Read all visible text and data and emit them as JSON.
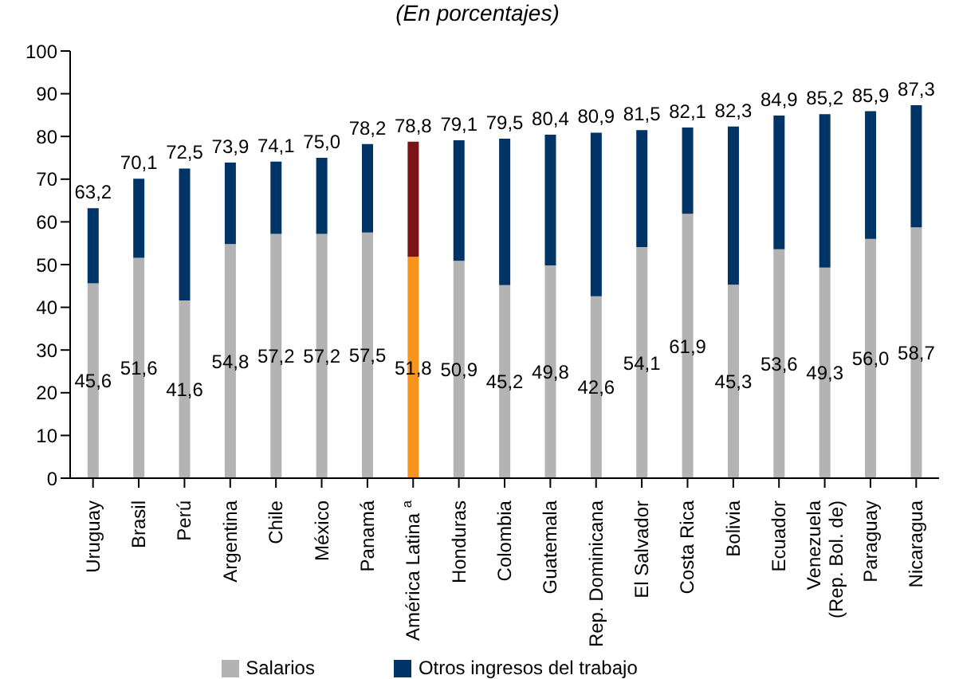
{
  "chart_data": {
    "type": "bar",
    "subtitle": "(En porcentajes)",
    "stacked": true,
    "categories": [
      "Uruguay",
      "Brasil",
      "Perú",
      "Argentina",
      "Chile",
      "México",
      "Panamá",
      "América Latina $^{a}$",
      "Honduras",
      "Colombia",
      "Guatemala",
      "Rep. Dominicana",
      "El Salvador",
      "Costa Rica",
      "Bolivia",
      "Ecuador",
      "Venezuela (Rep. Bol. de)",
      "Paraguay",
      "Nicaragua"
    ],
    "series": [
      {
        "name": "Salarios",
        "color": "#b3b3b3",
        "colors": [
          "#b3b3b3",
          "#b3b3b3",
          "#b3b3b3",
          "#b3b3b3",
          "#b3b3b3",
          "#b3b3b3",
          "#b3b3b3",
          "#f7941d",
          "#b3b3b3",
          "#b3b3b3",
          "#b3b3b3",
          "#b3b3b3",
          "#b3b3b3",
          "#b3b3b3",
          "#b3b3b3",
          "#b3b3b3",
          "#b3b3b3",
          "#b3b3b3",
          "#b3b3b3"
        ],
        "values": [
          45.6,
          51.6,
          41.6,
          54.8,
          57.2,
          57.2,
          57.5,
          51.8,
          50.9,
          45.2,
          49.8,
          42.6,
          54.1,
          61.9,
          45.3,
          53.6,
          49.3,
          56.0,
          58.7
        ],
        "value_labels": [
          "45,6",
          "51,6",
          "41,6",
          "54,8",
          "57,2",
          "57,2",
          "57,5",
          "51,8",
          "50,9",
          "45,2",
          "49,8",
          "42,6",
          "54,1",
          "61,9",
          "45,3",
          "53,6",
          "49,3",
          "56,0",
          "58,7"
        ]
      },
      {
        "name": "Otros ingresos del trabajo",
        "color": "#003366",
        "colors": [
          "#003366",
          "#003366",
          "#003366",
          "#003366",
          "#003366",
          "#003366",
          "#003366",
          "#7b1416",
          "#003366",
          "#003366",
          "#003366",
          "#003366",
          "#003366",
          "#003366",
          "#003366",
          "#003366",
          "#003366",
          "#003366",
          "#003366"
        ],
        "values": [
          17.6,
          18.5,
          30.9,
          19.1,
          16.9,
          17.8,
          20.7,
          27.0,
          28.2,
          34.3,
          30.6,
          38.3,
          27.4,
          20.2,
          37.0,
          31.3,
          35.9,
          29.9,
          28.6
        ]
      }
    ],
    "totals": [
      "63,2",
      "70,1",
      "72,5",
      "73,9",
      "74,1",
      "75,0",
      "78,2",
      "78,8",
      "79,1",
      "79,5",
      "80,4",
      "80,9",
      "81,5",
      "82,1",
      "82,3",
      "84,9",
      "85,2",
      "85,9",
      "87,3"
    ],
    "ylim": [
      0,
      100
    ],
    "yticks": [
      0,
      10,
      20,
      30,
      40,
      50,
      60,
      70,
      80,
      90,
      100
    ],
    "grid": false,
    "legend": "bottom"
  }
}
